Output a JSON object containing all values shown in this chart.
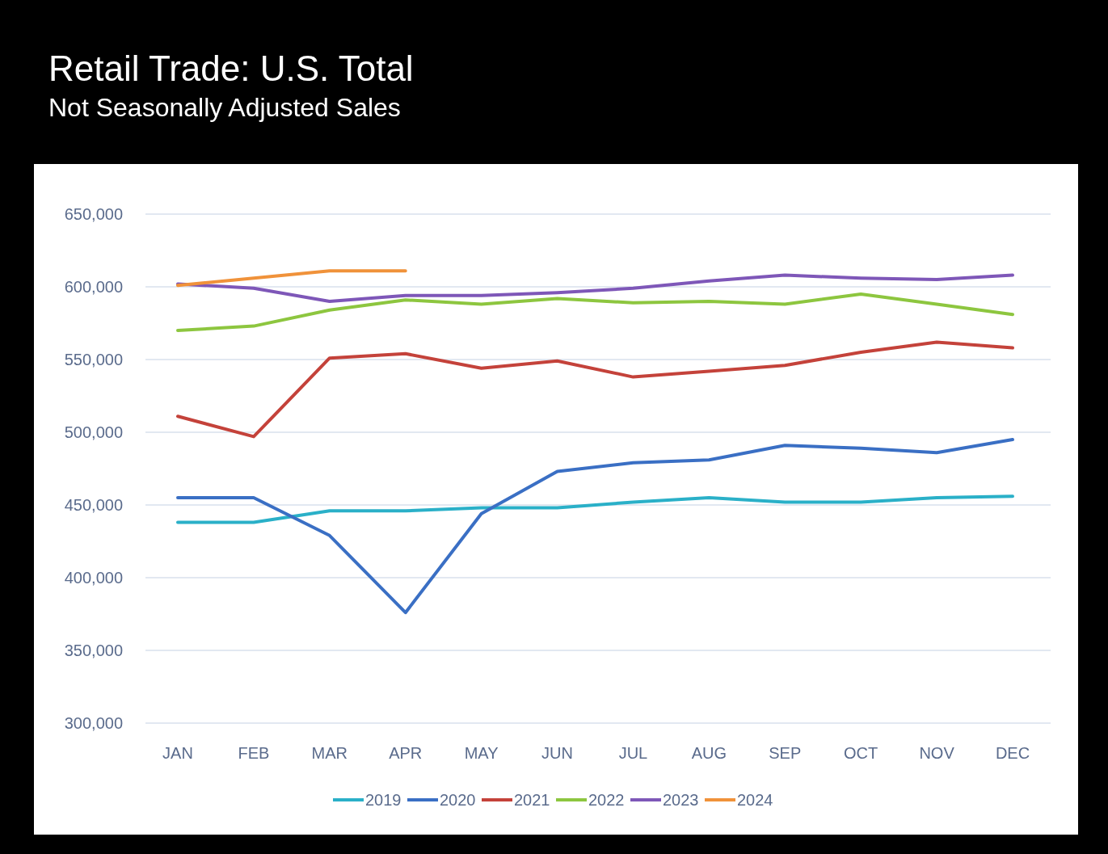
{
  "chart_data": {
    "type": "line",
    "title": "Retail Trade: U.S. Total",
    "subtitle": "Not Seasonally Adjusted Sales",
    "categories": [
      "JAN",
      "FEB",
      "MAR",
      "APR",
      "MAY",
      "JUN",
      "JUL",
      "AUG",
      "SEP",
      "OCT",
      "NOV",
      "DEC"
    ],
    "series": [
      {
        "name": "2019",
        "color": "#2ab0c8",
        "values": [
          438000,
          438000,
          446000,
          446000,
          448000,
          448000,
          452000,
          455000,
          452000,
          452000,
          455000,
          456000
        ]
      },
      {
        "name": "2020",
        "color": "#3a6fc4",
        "values": [
          455000,
          455000,
          429000,
          376000,
          444000,
          473000,
          479000,
          481000,
          491000,
          489000,
          486000,
          495000
        ]
      },
      {
        "name": "2021",
        "color": "#c4423a",
        "values": [
          511000,
          497000,
          551000,
          554000,
          544000,
          549000,
          538000,
          542000,
          546000,
          555000,
          562000,
          558000
        ]
      },
      {
        "name": "2022",
        "color": "#8dc63f",
        "values": [
          570000,
          573000,
          584000,
          591000,
          588000,
          592000,
          589000,
          590000,
          588000,
          595000,
          588000,
          581000
        ]
      },
      {
        "name": "2023",
        "color": "#7e57b8",
        "values": [
          602000,
          599000,
          590000,
          594000,
          594000,
          596000,
          599000,
          604000,
          608000,
          606000,
          605000,
          608000
        ]
      },
      {
        "name": "2024",
        "color": "#f0923a",
        "values": [
          601000,
          606000,
          611000,
          611000,
          null,
          null,
          null,
          null,
          null,
          null,
          null,
          null
        ]
      }
    ],
    "ylim": [
      300000,
      650000
    ],
    "yticks": [
      {
        "value": 300000,
        "label": "300,000"
      },
      {
        "value": 350000,
        "label": "350,000"
      },
      {
        "value": 400000,
        "label": "400,000"
      },
      {
        "value": 450000,
        "label": "450,000"
      },
      {
        "value": 500000,
        "label": "500,000"
      },
      {
        "value": 550000,
        "label": "550,000"
      },
      {
        "value": 600000,
        "label": "600,000"
      },
      {
        "value": 650000,
        "label": "650,000"
      }
    ],
    "grid": "y",
    "legend": "bottom",
    "line_style": "solid"
  }
}
